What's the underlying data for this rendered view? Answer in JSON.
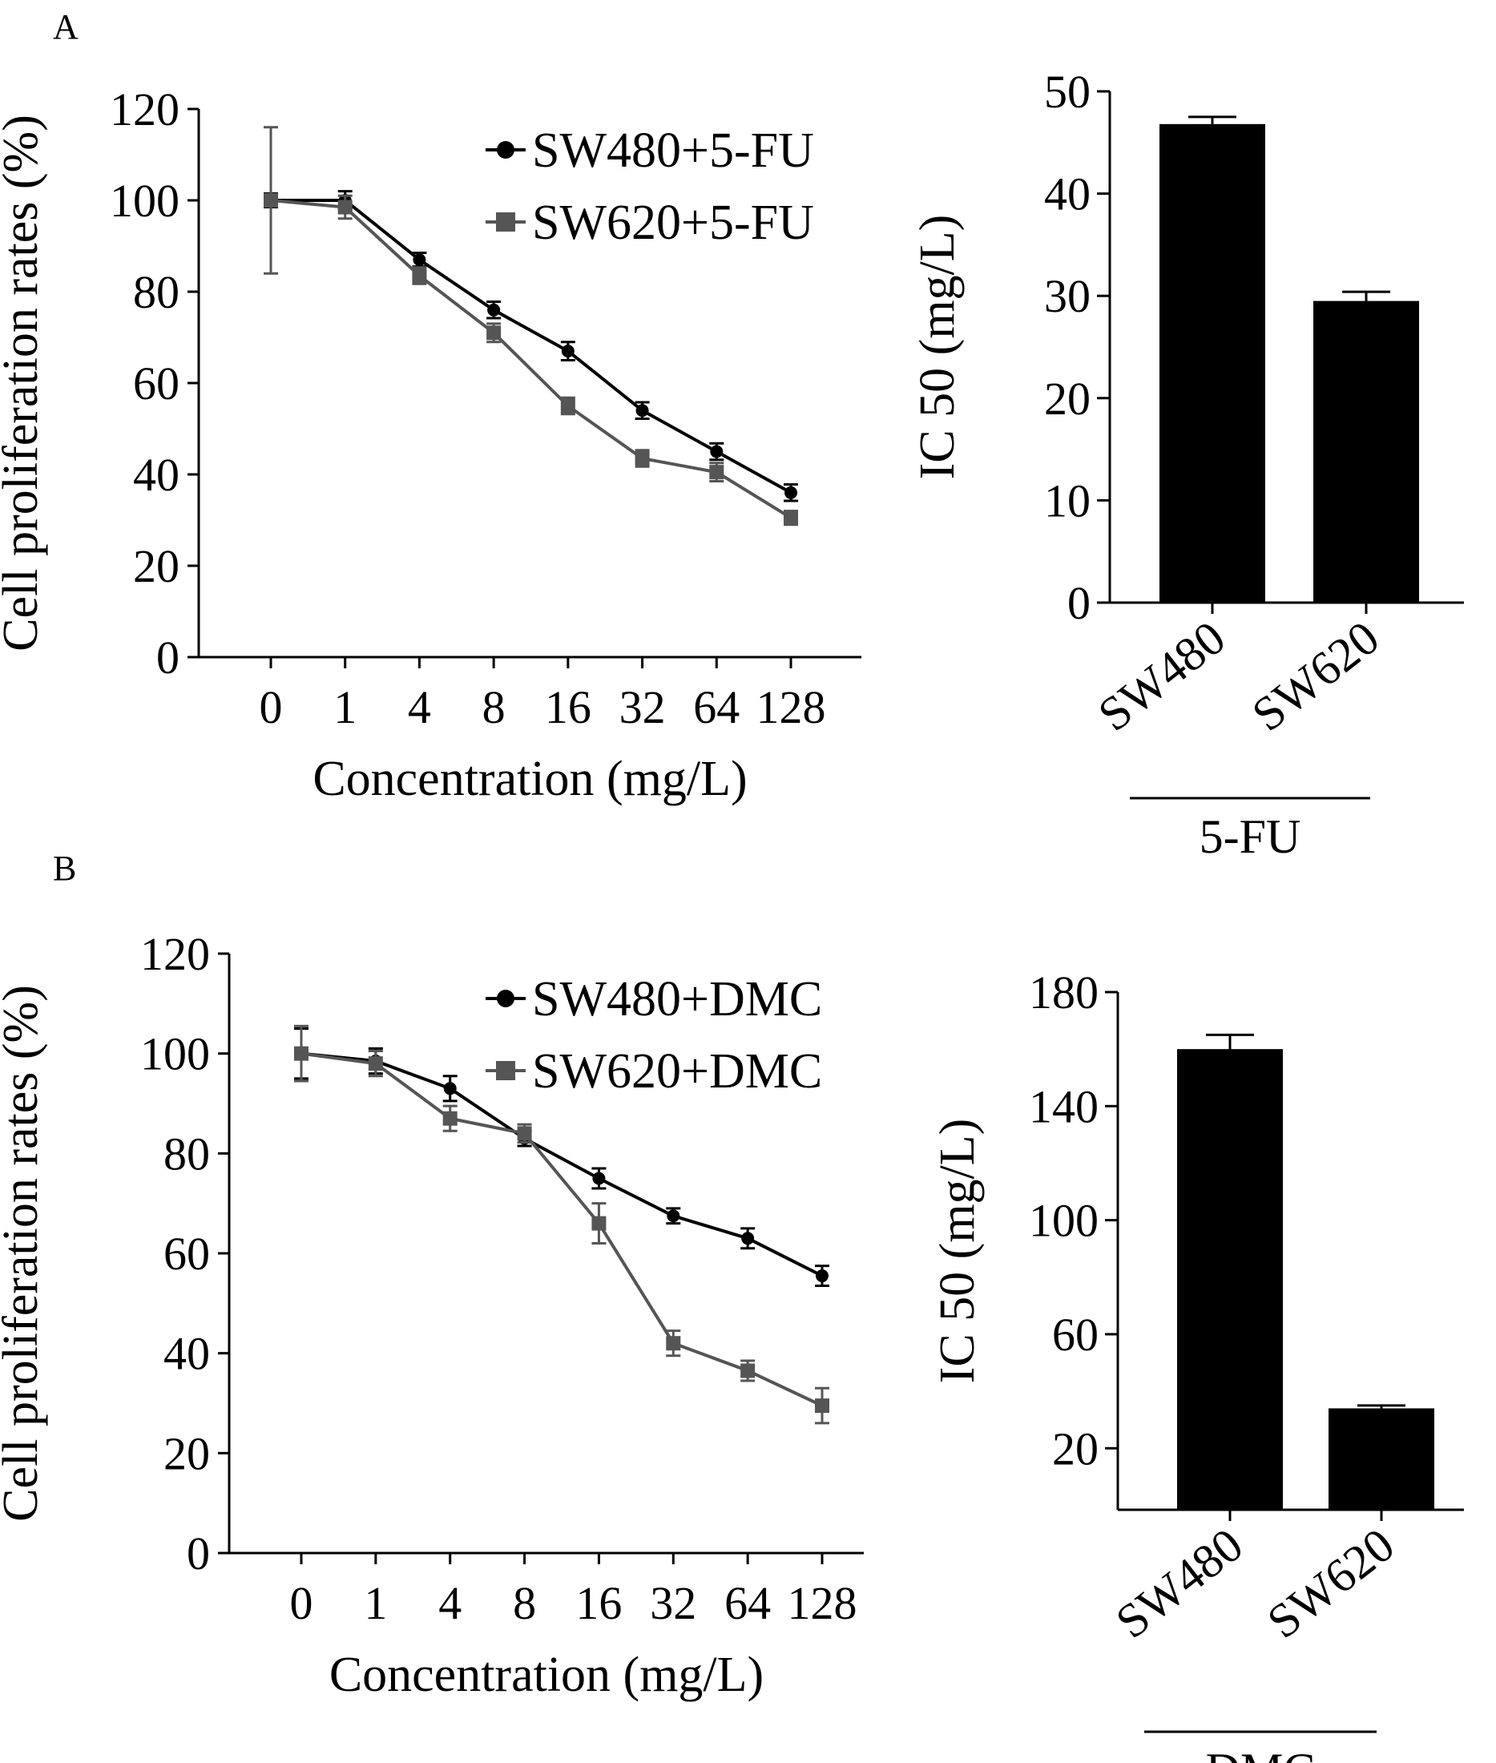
{
  "figure": {
    "panels": [
      {
        "letter": "A",
        "line_chart": {
          "type": "line",
          "xlabel": "Concentration (mg/L)",
          "ylabel": "Cell proliferation rates (%)",
          "ylim": [
            0,
            120
          ],
          "yticks": [
            0,
            20,
            40,
            60,
            80,
            100,
            120
          ],
          "categories": [
            "0",
            "1",
            "4",
            "8",
            "16",
            "32",
            "64",
            "128"
          ],
          "legend_position": "top-right",
          "series": [
            {
              "name": "SW480+5-FU",
              "marker": "circle",
              "color": "#000000",
              "values": [
                100,
                100,
                87,
                76,
                67,
                54,
                45,
                36
              ],
              "errors": [
                1.5,
                2,
                1.5,
                1.8,
                2,
                1.8,
                1.8,
                1.8
              ]
            },
            {
              "name": "SW620+5-FU",
              "marker": "square",
              "color": "#555555",
              "values": [
                100,
                98.5,
                83.5,
                71,
                55,
                43.5,
                40.5,
                30.5
              ],
              "errors": [
                16,
                2.5,
                1.8,
                2,
                1.8,
                1.8,
                2,
                1.5
              ]
            }
          ]
        },
        "bar_chart": {
          "type": "bar",
          "ylabel": "IC 50 (mg/L)",
          "ylim": [
            0,
            50
          ],
          "yticks": [
            0,
            10,
            20,
            30,
            40,
            50
          ],
          "categories": [
            "SW480",
            "SW620"
          ],
          "values": [
            46.8,
            29.5
          ],
          "errors": [
            0.7,
            0.9
          ],
          "bar_color": "#000000",
          "group_label": "5-FU"
        }
      },
      {
        "letter": "B",
        "line_chart": {
          "type": "line",
          "xlabel": "Concentration (mg/L)",
          "ylabel": "Cell proliferation rates (%)",
          "ylim": [
            0,
            120
          ],
          "yticks": [
            0,
            20,
            40,
            60,
            80,
            100,
            120
          ],
          "categories": [
            "0",
            "1",
            "4",
            "8",
            "16",
            "32",
            "64",
            "128"
          ],
          "legend_position": "top-right",
          "series": [
            {
              "name": "SW480+DMC",
              "marker": "circle",
              "color": "#000000",
              "values": [
                100,
                98.5,
                93,
                83,
                75,
                67.5,
                63,
                55.5
              ],
              "errors": [
                5,
                2.5,
                2.5,
                1.5,
                2,
                1.5,
                2,
                2
              ]
            },
            {
              "name": "SW620+DMC",
              "marker": "square",
              "color": "#555555",
              "values": [
                100,
                98,
                87,
                84,
                66,
                42,
                36.5,
                29.5
              ],
              "errors": [
                5.5,
                2.5,
                2.5,
                1.8,
                4,
                2.5,
                2,
                3.5
              ]
            }
          ]
        },
        "bar_chart": {
          "type": "bar",
          "ylabel": "IC 50 (mg/L)",
          "ylim": [
            0,
            180
          ],
          "yticks": [
            20,
            60,
            100,
            140,
            180
          ],
          "categories": [
            "SW480",
            "SW620"
          ],
          "values": [
            160,
            34
          ],
          "errors": [
            5,
            1
          ],
          "bar_color": "#000000",
          "group_label": "DMC"
        }
      }
    ]
  }
}
